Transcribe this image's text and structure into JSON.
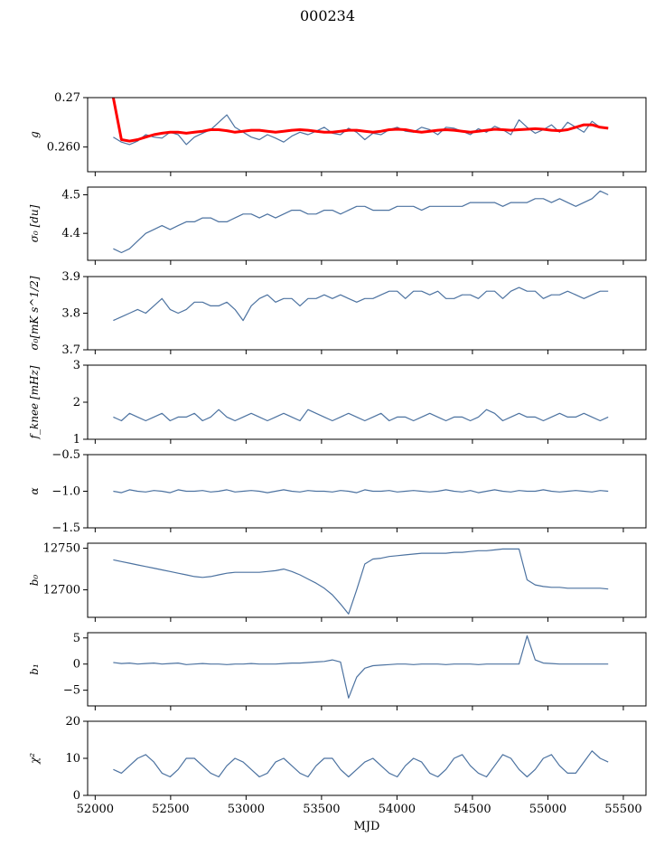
{
  "figure": {
    "title": "000234",
    "xlabel": "MJD"
  },
  "colors": {
    "series": "#4c72a0",
    "fit": "#ff0000",
    "axis": "#000000"
  },
  "chart_data": [
    {
      "type": "line",
      "key": "g",
      "ylabel": "g",
      "xlim": [
        51950,
        55650
      ],
      "ylim": [
        0.255,
        0.27
      ],
      "yticks": [
        0.26,
        0.27
      ],
      "ytick_labels": [
        "0.260",
        "0.27"
      ],
      "xticks": [
        52000,
        52500,
        53000,
        53500,
        54000,
        54500,
        55000,
        55500
      ],
      "x_range": [
        52120,
        55400
      ],
      "series": [
        {
          "role": "data",
          "values": [
            0.262,
            0.261,
            0.2605,
            0.2612,
            0.2625,
            0.262,
            0.2618,
            0.263,
            0.2625,
            0.2605,
            0.262,
            0.2628,
            0.2635,
            0.265,
            0.2665,
            0.264,
            0.263,
            0.262,
            0.2615,
            0.2625,
            0.2618,
            0.261,
            0.2622,
            0.263,
            0.2625,
            0.2632,
            0.264,
            0.2628,
            0.2625,
            0.2638,
            0.263,
            0.2615,
            0.2628,
            0.2625,
            0.2635,
            0.264,
            0.2632,
            0.263,
            0.264,
            0.2635,
            0.2625,
            0.264,
            0.2638,
            0.2632,
            0.2625,
            0.2637,
            0.263,
            0.2642,
            0.2635,
            0.2625,
            0.2655,
            0.264,
            0.2628,
            0.2635,
            0.2645,
            0.263,
            0.265,
            0.264,
            0.263,
            0.2652,
            0.264,
            0.2638
          ]
        },
        {
          "role": "fit",
          "values": [
            0.27,
            0.2615,
            0.2612,
            0.2615,
            0.262,
            0.2625,
            0.2628,
            0.263,
            0.263,
            0.2628,
            0.263,
            0.2632,
            0.2635,
            0.2635,
            0.2633,
            0.263,
            0.2632,
            0.2634,
            0.2634,
            0.2632,
            0.263,
            0.2632,
            0.2634,
            0.2635,
            0.2634,
            0.2632,
            0.263,
            0.263,
            0.2632,
            0.2634,
            0.2634,
            0.2632,
            0.263,
            0.2632,
            0.2635,
            0.2636,
            0.2635,
            0.2632,
            0.263,
            0.2632,
            0.2634,
            0.2635,
            0.2634,
            0.2632,
            0.263,
            0.2632,
            0.2634,
            0.2636,
            0.2635,
            0.2634,
            0.2635,
            0.2636,
            0.2637,
            0.2636,
            0.2634,
            0.2633,
            0.2635,
            0.264,
            0.2645,
            0.2645,
            0.264,
            0.2638
          ]
        }
      ]
    },
    {
      "type": "line",
      "key": "sigma0_du",
      "ylabel": "σ₀ [du]",
      "xlim": [
        51950,
        55650
      ],
      "ylim": [
        4.33,
        4.52
      ],
      "yticks": [
        4.4,
        4.5
      ],
      "ytick_labels": [
        "4.4",
        "4.5"
      ],
      "xticks": [
        52000,
        52500,
        53000,
        53500,
        54000,
        54500,
        55000,
        55500
      ],
      "x_range": [
        52120,
        55400
      ],
      "series": [
        {
          "role": "data",
          "values": [
            4.36,
            4.35,
            4.36,
            4.38,
            4.4,
            4.41,
            4.42,
            4.41,
            4.42,
            4.43,
            4.43,
            4.44,
            4.44,
            4.43,
            4.43,
            4.44,
            4.45,
            4.45,
            4.44,
            4.45,
            4.44,
            4.45,
            4.46,
            4.46,
            4.45,
            4.45,
            4.46,
            4.46,
            4.45,
            4.46,
            4.47,
            4.47,
            4.46,
            4.46,
            4.46,
            4.47,
            4.47,
            4.47,
            4.46,
            4.47,
            4.47,
            4.47,
            4.47,
            4.47,
            4.48,
            4.48,
            4.48,
            4.48,
            4.47,
            4.48,
            4.48,
            4.48,
            4.49,
            4.49,
            4.48,
            4.49,
            4.48,
            4.47,
            4.48,
            4.49,
            4.51,
            4.5
          ]
        }
      ]
    },
    {
      "type": "line",
      "key": "sigma0_mk",
      "ylabel": "σ₀[mK s^1/2]",
      "xlim": [
        51950,
        55650
      ],
      "ylim": [
        3.7,
        3.9
      ],
      "yticks": [
        3.7,
        3.8,
        3.9
      ],
      "ytick_labels": [
        "3.7",
        "3.8",
        "3.9"
      ],
      "xticks": [
        52000,
        52500,
        53000,
        53500,
        54000,
        54500,
        55000,
        55500
      ],
      "x_range": [
        52120,
        55400
      ],
      "series": [
        {
          "role": "data",
          "values": [
            3.78,
            3.79,
            3.8,
            3.81,
            3.8,
            3.82,
            3.84,
            3.81,
            3.8,
            3.81,
            3.83,
            3.83,
            3.82,
            3.82,
            3.83,
            3.81,
            3.78,
            3.82,
            3.84,
            3.85,
            3.83,
            3.84,
            3.84,
            3.82,
            3.84,
            3.84,
            3.85,
            3.84,
            3.85,
            3.84,
            3.83,
            3.84,
            3.84,
            3.85,
            3.86,
            3.86,
            3.84,
            3.86,
            3.86,
            3.85,
            3.86,
            3.84,
            3.84,
            3.85,
            3.85,
            3.84,
            3.86,
            3.86,
            3.84,
            3.86,
            3.87,
            3.86,
            3.86,
            3.84,
            3.85,
            3.85,
            3.86,
            3.85,
            3.84,
            3.85,
            3.86,
            3.86
          ]
        }
      ]
    },
    {
      "type": "line",
      "key": "fknee",
      "ylabel": "f_knee [mHz]",
      "xlim": [
        51950,
        55650
      ],
      "ylim": [
        1,
        3
      ],
      "yticks": [
        1,
        2,
        3
      ],
      "ytick_labels": [
        "1",
        "2",
        "3"
      ],
      "xticks": [
        52000,
        52500,
        53000,
        53500,
        54000,
        54500,
        55000,
        55500
      ],
      "x_range": [
        52120,
        55400
      ],
      "series": [
        {
          "role": "data",
          "values": [
            1.6,
            1.5,
            1.7,
            1.6,
            1.5,
            1.6,
            1.7,
            1.5,
            1.6,
            1.6,
            1.7,
            1.5,
            1.6,
            1.8,
            1.6,
            1.5,
            1.6,
            1.7,
            1.6,
            1.5,
            1.6,
            1.7,
            1.6,
            1.5,
            1.8,
            1.7,
            1.6,
            1.5,
            1.6,
            1.7,
            1.6,
            1.5,
            1.6,
            1.7,
            1.5,
            1.6,
            1.6,
            1.5,
            1.6,
            1.7,
            1.6,
            1.5,
            1.6,
            1.6,
            1.5,
            1.6,
            1.8,
            1.7,
            1.5,
            1.6,
            1.7,
            1.6,
            1.6,
            1.5,
            1.6,
            1.7,
            1.6,
            1.6,
            1.7,
            1.6,
            1.5,
            1.6
          ]
        }
      ]
    },
    {
      "type": "line",
      "key": "alpha",
      "ylabel": "α",
      "xlim": [
        51950,
        55650
      ],
      "ylim": [
        -1.5,
        -0.5
      ],
      "yticks": [
        -1.5,
        -1.0,
        -0.5
      ],
      "ytick_labels": [
        "−1.5",
        "−1.0",
        "−0.5"
      ],
      "xticks": [
        52000,
        52500,
        53000,
        53500,
        54000,
        54500,
        55000,
        55500
      ],
      "x_range": [
        52120,
        55400
      ],
      "series": [
        {
          "role": "data",
          "values": [
            -1.0,
            -1.02,
            -0.98,
            -1.0,
            -1.01,
            -0.99,
            -1.0,
            -1.02,
            -0.98,
            -1.0,
            -1.0,
            -0.99,
            -1.01,
            -1.0,
            -0.98,
            -1.01,
            -1.0,
            -0.99,
            -1.0,
            -1.02,
            -1.0,
            -0.98,
            -1.0,
            -1.01,
            -0.99,
            -1.0,
            -1.0,
            -1.01,
            -0.99,
            -1.0,
            -1.02,
            -0.98,
            -1.0,
            -1.0,
            -0.99,
            -1.01,
            -1.0,
            -0.99,
            -1.0,
            -1.01,
            -1.0,
            -0.98,
            -1.0,
            -1.01,
            -0.99,
            -1.02,
            -1.0,
            -0.98,
            -1.0,
            -1.01,
            -0.99,
            -1.0,
            -1.0,
            -0.98,
            -1.0,
            -1.01,
            -1.0,
            -0.99,
            -1.0,
            -1.01,
            -0.99,
            -1.0
          ]
        }
      ]
    },
    {
      "type": "line",
      "key": "b0",
      "ylabel": "b₀",
      "xlim": [
        51950,
        55650
      ],
      "ylim": [
        12667,
        12756
      ],
      "yticks": [
        12700,
        12750
      ],
      "ytick_labels": [
        "12700",
        "12750"
      ],
      "xticks": [
        52000,
        52500,
        53000,
        53500,
        54000,
        54500,
        55000,
        55500
      ],
      "x_range": [
        52120,
        55400
      ],
      "series": [
        {
          "role": "data",
          "values": [
            12736,
            12734,
            12732,
            12730,
            12728,
            12726,
            12724,
            12722,
            12720,
            12718,
            12716,
            12715,
            12716,
            12718,
            12720,
            12721,
            12721,
            12721,
            12721,
            12722,
            12723,
            12725,
            12722,
            12718,
            12713,
            12708,
            12702,
            12694,
            12683,
            12671,
            12700,
            12731,
            12737,
            12738,
            12740,
            12741,
            12742,
            12743,
            12744,
            12744,
            12744,
            12744,
            12745,
            12745,
            12746,
            12747,
            12747,
            12748,
            12749,
            12749,
            12749,
            12712,
            12706,
            12704,
            12703,
            12703,
            12702,
            12702,
            12702,
            12702,
            12702,
            12701
          ]
        }
      ]
    },
    {
      "type": "line",
      "key": "b1",
      "ylabel": "b₁",
      "xlim": [
        51950,
        55650
      ],
      "ylim": [
        -8,
        6
      ],
      "yticks": [
        -5,
        0,
        5
      ],
      "ytick_labels": [
        "−5",
        "0",
        "5"
      ],
      "xticks": [
        52000,
        52500,
        53000,
        53500,
        54000,
        54500,
        55000,
        55500
      ],
      "x_range": [
        52120,
        55400
      ],
      "series": [
        {
          "role": "data",
          "values": [
            0.3,
            0.1,
            0.2,
            0.0,
            0.1,
            0.2,
            0.0,
            0.1,
            0.2,
            -0.1,
            0.0,
            0.1,
            0.0,
            0.0,
            -0.1,
            0.0,
            0.0,
            0.1,
            0.0,
            0.0,
            0.0,
            0.1,
            0.2,
            0.2,
            0.3,
            0.4,
            0.5,
            0.8,
            0.4,
            -6.5,
            -2.5,
            -0.8,
            -0.3,
            -0.2,
            -0.1,
            0.0,
            0.0,
            -0.1,
            0.0,
            0.0,
            0.0,
            -0.1,
            0.0,
            0.0,
            0.0,
            -0.1,
            0.0,
            0.0,
            0.0,
            0.0,
            0.0,
            5.4,
            0.8,
            0.2,
            0.1,
            0.0,
            0.0,
            0.0,
            0.0,
            0.0,
            0.0,
            0.0
          ]
        }
      ]
    },
    {
      "type": "line",
      "key": "chi2",
      "ylabel": "χ²",
      "xlim": [
        51950,
        55650
      ],
      "ylim": [
        0,
        20
      ],
      "yticks": [
        0,
        10,
        20
      ],
      "ytick_labels": [
        "0",
        "10",
        "20"
      ],
      "xticks": [
        52000,
        52500,
        53000,
        53500,
        54000,
        54500,
        55000,
        55500
      ],
      "x_range": [
        52120,
        55400
      ],
      "series": [
        {
          "role": "data",
          "values": [
            7,
            6,
            8,
            10,
            11,
            9,
            6,
            5,
            7,
            10,
            10,
            8,
            6,
            5,
            8,
            10,
            9,
            7,
            5,
            6,
            9,
            10,
            8,
            6,
            5,
            8,
            10,
            10,
            7,
            5,
            7,
            9,
            10,
            8,
            6,
            5,
            8,
            10,
            9,
            6,
            5,
            7,
            10,
            11,
            8,
            6,
            5,
            8,
            11,
            10,
            7,
            5,
            7,
            10,
            11,
            8,
            6,
            6,
            9,
            12,
            10,
            9
          ]
        }
      ]
    }
  ],
  "xticks": {
    "values": [
      52000,
      52500,
      53000,
      53500,
      54000,
      54500,
      55000,
      55500
    ],
    "labels": [
      "52000",
      "52500",
      "53000",
      "53500",
      "54000",
      "54500",
      "55000",
      "55500"
    ]
  }
}
